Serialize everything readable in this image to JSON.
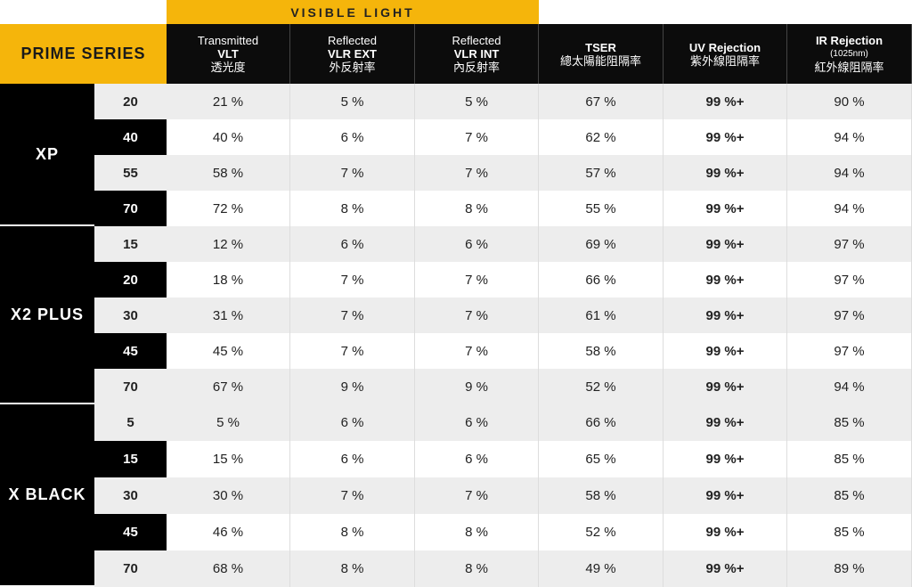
{
  "visible_light_label": "VISIBLE LIGHT",
  "series_label": "PRIME SERIES",
  "columns": [
    {
      "l1": "Transmitted",
      "l2": "VLT",
      "l3": "透光度"
    },
    {
      "l1": "Reflected",
      "l2": "VLR EXT",
      "l3": "外反射率"
    },
    {
      "l1": "Reflected",
      "l2": "VLR INT",
      "l3": "內反射率"
    },
    {
      "l1": "TSER",
      "l3": "總太陽能阻隔率"
    },
    {
      "l1": "UV Rejection",
      "l3": "紫外線阻隔率"
    },
    {
      "l1": "IR Rejection",
      "l2": "(1025nm)",
      "l3": "紅外線阻隔率"
    }
  ],
  "groups": [
    {
      "name": "XP",
      "rows": [
        {
          "shade": "20",
          "values": [
            "21 %",
            "5 %",
            "5 %",
            "67 %",
            "99 %+",
            "90 %"
          ]
        },
        {
          "shade": "40",
          "values": [
            "40 %",
            "6 %",
            "7 %",
            "62 %",
            "99 %+",
            "94 %"
          ]
        },
        {
          "shade": "55",
          "values": [
            "58 %",
            "7 %",
            "7 %",
            "57 %",
            "99 %+",
            "94 %"
          ]
        },
        {
          "shade": "70",
          "values": [
            "72 %",
            "8 %",
            "8 %",
            "55 %",
            "99 %+",
            "94 %"
          ]
        }
      ]
    },
    {
      "name": "X2 PLUS",
      "rows": [
        {
          "shade": "15",
          "values": [
            "12 %",
            "6 %",
            "6 %",
            "69 %",
            "99 %+",
            "97 %"
          ]
        },
        {
          "shade": "20",
          "values": [
            "18 %",
            "7 %",
            "7 %",
            "66 %",
            "99 %+",
            "97 %"
          ]
        },
        {
          "shade": "30",
          "values": [
            "31 %",
            "7 %",
            "7 %",
            "61 %",
            "99 %+",
            "97 %"
          ]
        },
        {
          "shade": "45",
          "values": [
            "45 %",
            "7 %",
            "7 %",
            "58 %",
            "99 %+",
            "97 %"
          ]
        },
        {
          "shade": "70",
          "values": [
            "67 %",
            "9 %",
            "9 %",
            "52 %",
            "99 %+",
            "94 %"
          ]
        }
      ]
    },
    {
      "name": "X BLACK",
      "rows": [
        {
          "shade": "5",
          "values": [
            "5 %",
            "6 %",
            "6 %",
            "66 %",
            "99 %+",
            "85 %"
          ]
        },
        {
          "shade": "15",
          "values": [
            "15 %",
            "6 %",
            "6 %",
            "65 %",
            "99 %+",
            "85 %"
          ]
        },
        {
          "shade": "30",
          "values": [
            "30 %",
            "7 %",
            "7 %",
            "58 %",
            "99 %+",
            "85 %"
          ]
        },
        {
          "shade": "45",
          "values": [
            "46 %",
            "8 %",
            "8 %",
            "52 %",
            "99 %+",
            "85 %"
          ]
        },
        {
          "shade": "70",
          "values": [
            "68 %",
            "8 %",
            "8 %",
            "49 %",
            "99 %+",
            "89 %"
          ]
        }
      ]
    }
  ],
  "colors": {
    "accent": "#f5b50b",
    "dark": "#000000",
    "stripe": "#ededed"
  }
}
